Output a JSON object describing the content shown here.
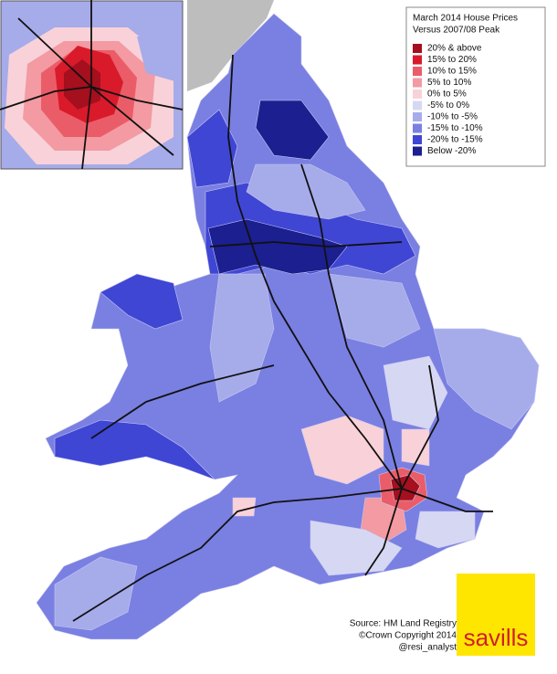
{
  "legend": {
    "title": [
      "March 2014 House Prices",
      "Versus 2007/08 Peak"
    ],
    "items": [
      {
        "label": "20% & above",
        "color": "#a50f1e"
      },
      {
        "label": "15% to 20%",
        "color": "#d91a2a"
      },
      {
        "label": "10% to 15%",
        "color": "#ea5d68"
      },
      {
        "label": "5% to 10%",
        "color": "#f39aa2"
      },
      {
        "label": "0% to 5%",
        "color": "#f8d2d8"
      },
      {
        "label": "-5% to 0%",
        "color": "#d6d8f3"
      },
      {
        "label": "-10% to -5%",
        "color": "#a6abea"
      },
      {
        "label": "-15% to -10%",
        "color": "#7a7fe2"
      },
      {
        "label": "-20% to -15%",
        "color": "#3f46d4"
      },
      {
        "label": "Below -20%",
        "color": "#1b1f8f"
      }
    ]
  },
  "source": [
    "Source: HM Land Registry",
    "©Crown Copyright 2014",
    "@resi_analyst"
  ],
  "logo": "savills"
}
